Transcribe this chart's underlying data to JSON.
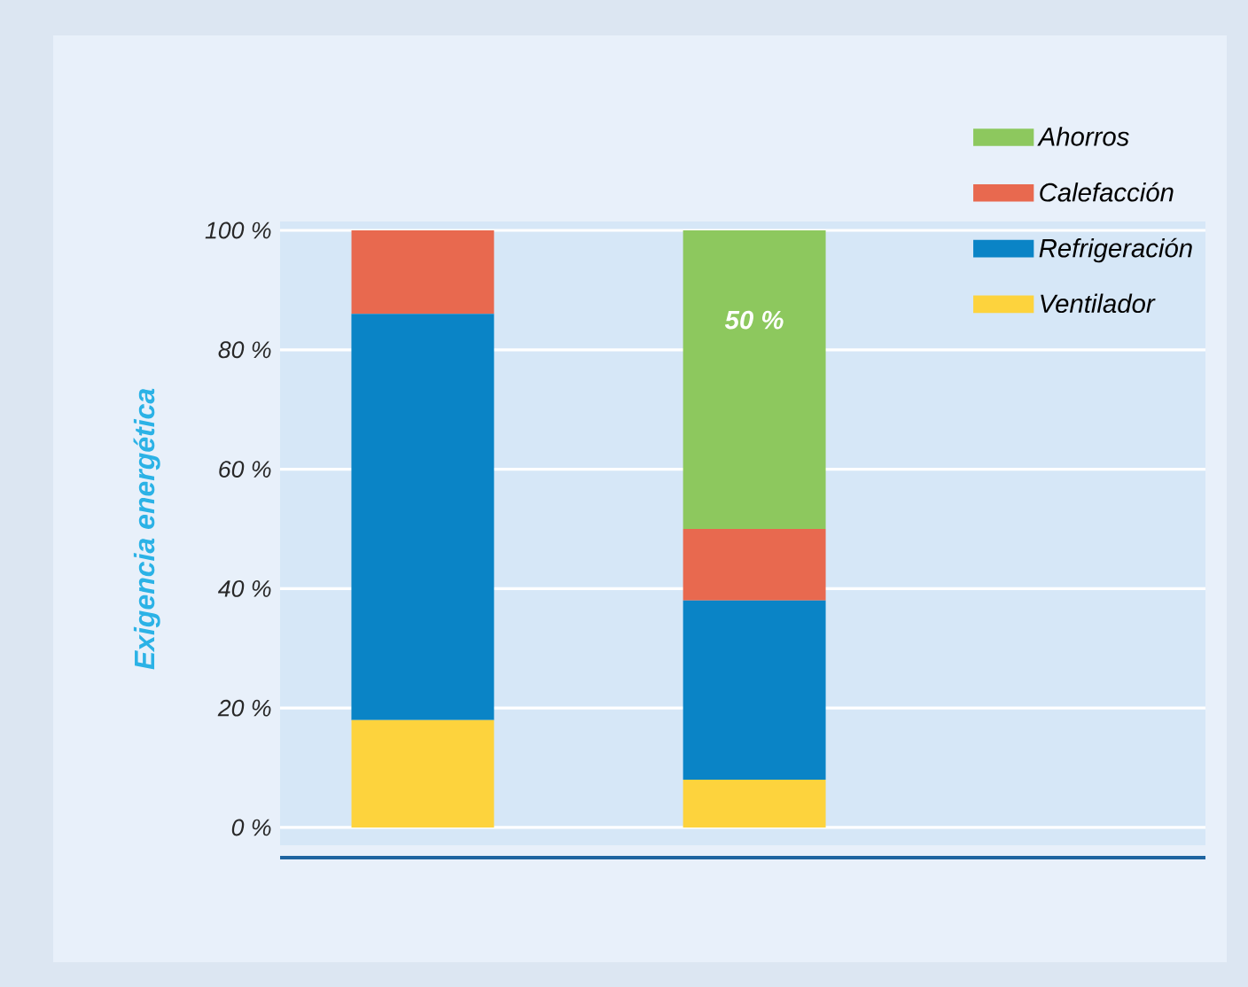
{
  "chart_data": {
    "type": "bar",
    "stacked": true,
    "ylabel": "Exigencia energética",
    "categories": [
      null,
      null
    ],
    "series": [
      {
        "name": "Ventilador",
        "color": "#fdd33d",
        "values": [
          18,
          8
        ]
      },
      {
        "name": "Refrigeración",
        "color": "#0a84c6",
        "values": [
          68,
          30
        ]
      },
      {
        "name": "Calefacción",
        "color": "#e8694f",
        "values": [
          14,
          12
        ]
      },
      {
        "name": "Ahorros",
        "color": "#8dc85e",
        "values": [
          null,
          50
        ],
        "value_labels": [
          null,
          "50 %"
        ]
      }
    ],
    "ylim": [
      0,
      100
    ],
    "yticks": [
      {
        "value": 0,
        "label": "0 %"
      },
      {
        "value": 20,
        "label": "20 %"
      },
      {
        "value": 40,
        "label": "40 %"
      },
      {
        "value": 60,
        "label": "60 %"
      },
      {
        "value": 80,
        "label": "80 %"
      },
      {
        "value": 100,
        "label": "100 %"
      }
    ],
    "grid": "y",
    "legend": "top right",
    "tick_labels": "y"
  }
}
